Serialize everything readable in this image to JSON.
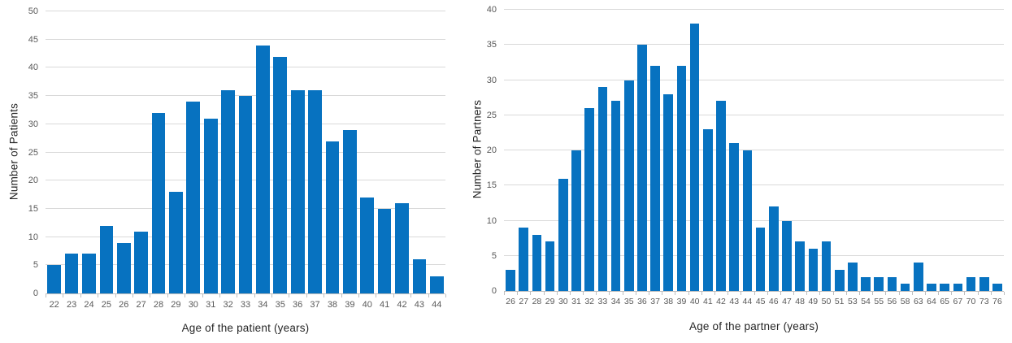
{
  "chart_data": [
    {
      "type": "bar",
      "title": "",
      "ylabel": "Number of Patients",
      "xlabel": "Age of the patient (years)",
      "ylim": [
        0,
        50
      ],
      "ytick_step": 5,
      "grid": true,
      "legend": "none",
      "categories": [
        "22",
        "23",
        "24",
        "25",
        "26",
        "27",
        "28",
        "29",
        "30",
        "31",
        "32",
        "33",
        "34",
        "35",
        "36",
        "37",
        "38",
        "39",
        "40",
        "41",
        "42",
        "43",
        "44"
      ],
      "values": [
        5,
        7,
        7,
        12,
        9,
        11,
        32,
        18,
        34,
        31,
        36,
        35,
        44,
        42,
        36,
        36,
        27,
        29,
        17,
        15,
        16,
        6,
        3
      ],
      "bar_color": "#0772c0",
      "gridline_color": "#d9d9d9",
      "axis_line_color": "#bfbfbf",
      "tick_label_color": "#595959",
      "axis_title_color": "#262626"
    },
    {
      "type": "bar",
      "title": "",
      "ylabel": "Number of Partners",
      "xlabel": "Age of the partner (years)",
      "ylim": [
        0,
        40
      ],
      "ytick_step": 5,
      "grid": true,
      "legend": "none",
      "categories": [
        "26",
        "27",
        "28",
        "29",
        "30",
        "31",
        "32",
        "33",
        "34",
        "35",
        "36",
        "37",
        "38",
        "39",
        "40",
        "41",
        "42",
        "43",
        "44",
        "45",
        "46",
        "47",
        "48",
        "49",
        "50",
        "51",
        "53",
        "54",
        "55",
        "56",
        "58",
        "63",
        "64",
        "65",
        "67",
        "70",
        "73",
        "76"
      ],
      "values": [
        3,
        9,
        8,
        7,
        16,
        20,
        26,
        29,
        27,
        30,
        35,
        32,
        28,
        32,
        38,
        23,
        27,
        21,
        20,
        9,
        12,
        10,
        7,
        6,
        7,
        3,
        4,
        2,
        2,
        2,
        1,
        4,
        1,
        1,
        1,
        2,
        2,
        1
      ],
      "bar_color": "#0772c0",
      "gridline_color": "#d9d9d9",
      "axis_line_color": "#bfbfbf",
      "tick_label_color": "#595959",
      "axis_title_color": "#262626"
    }
  ]
}
